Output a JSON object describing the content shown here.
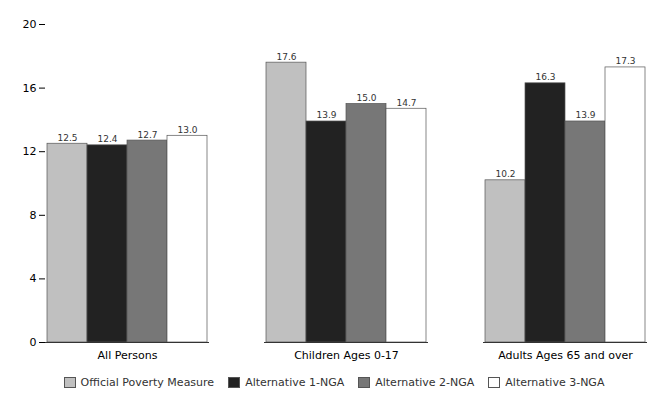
{
  "chart_data": {
    "type": "bar",
    "categories": [
      "All Persons",
      "Children Ages 0-17",
      "Adults Ages 65 and over"
    ],
    "series": [
      {
        "name": "Official Poverty Measure",
        "color": "#c0c0c0",
        "values": [
          12.5,
          17.6,
          10.2
        ],
        "value_labels": [
          "12.5",
          "17.6",
          "10.2"
        ]
      },
      {
        "name": "Alternative 1-NGA",
        "color": "#222222",
        "values": [
          12.4,
          13.9,
          16.3
        ],
        "value_labels": [
          "12.4",
          "13.9",
          "16.3"
        ]
      },
      {
        "name": "Alternative 2-NGA",
        "color": "#777777",
        "values": [
          12.7,
          15.0,
          13.9
        ],
        "value_labels": [
          "12.7",
          "15.0",
          "13.9"
        ]
      },
      {
        "name": "Alternative 3-NGA",
        "color": "#ffffff",
        "values": [
          13.0,
          14.7,
          17.3
        ],
        "value_labels": [
          "13.0",
          "14.7",
          "17.3"
        ]
      }
    ],
    "ylim": [
      0,
      20
    ],
    "yticks": [
      0,
      4,
      8,
      12,
      16,
      20
    ],
    "grid": false,
    "legend": "bottom",
    "data_labels": true
  }
}
